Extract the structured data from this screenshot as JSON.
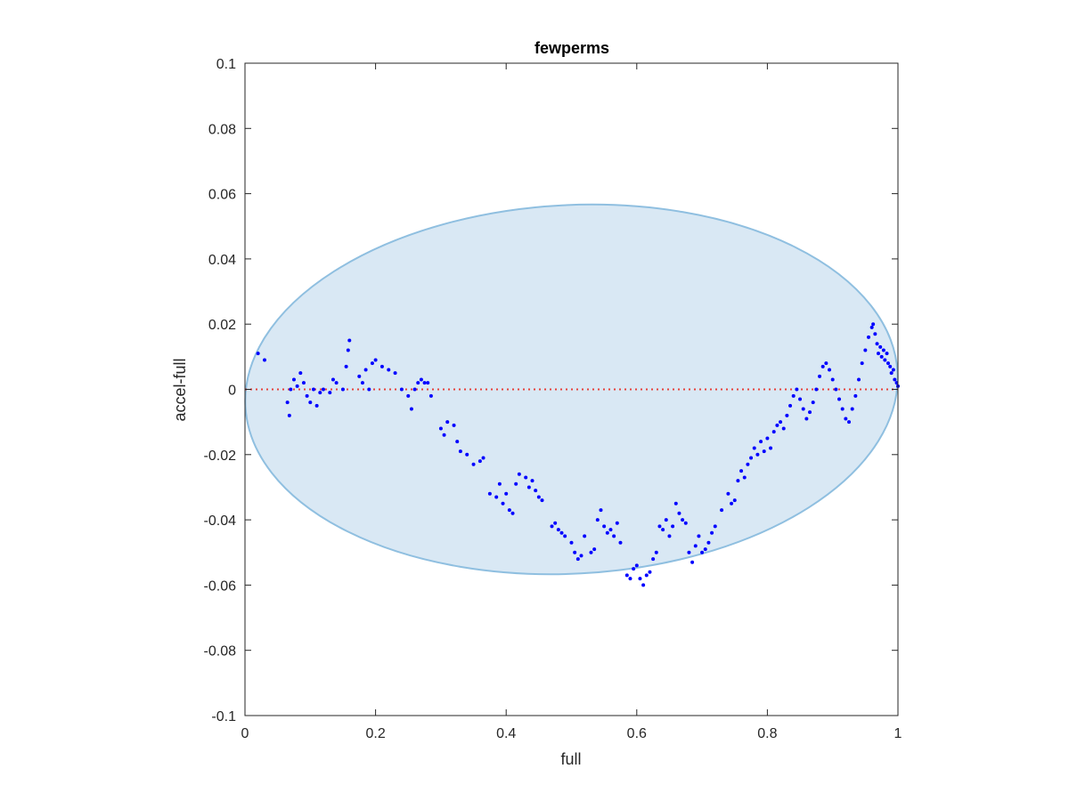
{
  "chart_data": {
    "type": "scatter",
    "title": "fewperms",
    "xlabel": "full",
    "ylabel": "accel-full",
    "xlim": [
      0,
      1
    ],
    "ylim": [
      -0.1,
      0.1
    ],
    "x_ticks": [
      "0",
      "0.2",
      "0.4",
      "0.6",
      "0.8",
      "1"
    ],
    "y_ticks": [
      "0.1",
      "0.08",
      "0.06",
      "0.04",
      "0.02",
      "0",
      "-0.02",
      "-0.04",
      "-0.06",
      "-0.08",
      "-0.1"
    ],
    "x_tick_values": [
      0,
      0.2,
      0.4,
      0.6,
      0.8,
      1
    ],
    "y_tick_values": [
      0.1,
      0.08,
      0.06,
      0.04,
      0.02,
      0,
      -0.02,
      -0.04,
      -0.06,
      -0.08,
      -0.1
    ],
    "grid": false,
    "reference_line": {
      "y": 0,
      "color": "#e8403a",
      "style": "dotted"
    },
    "ellipse": {
      "cx": 0.5,
      "cy": 0,
      "rx": 0.5,
      "ry": 0.0565,
      "angle_deg": -3,
      "fill": "#d9e8f4",
      "stroke": "#8fbfe0"
    },
    "marker_color": "#0000ff",
    "points": [
      [
        0.02,
        0.011
      ],
      [
        0.03,
        0.009
      ],
      [
        0.065,
        -0.004
      ],
      [
        0.068,
        -0.008
      ],
      [
        0.07,
        0.0
      ],
      [
        0.075,
        0.003
      ],
      [
        0.08,
        0.001
      ],
      [
        0.085,
        0.005
      ],
      [
        0.09,
        0.002
      ],
      [
        0.095,
        -0.002
      ],
      [
        0.1,
        -0.004
      ],
      [
        0.105,
        0.0
      ],
      [
        0.11,
        -0.005
      ],
      [
        0.115,
        -0.001
      ],
      [
        0.12,
        0.0
      ],
      [
        0.13,
        -0.001
      ],
      [
        0.135,
        0.003
      ],
      [
        0.14,
        0.002
      ],
      [
        0.15,
        0.0
      ],
      [
        0.155,
        0.007
      ],
      [
        0.158,
        0.012
      ],
      [
        0.16,
        0.015
      ],
      [
        0.175,
        0.004
      ],
      [
        0.18,
        0.002
      ],
      [
        0.185,
        0.006
      ],
      [
        0.19,
        0.0
      ],
      [
        0.195,
        0.008
      ],
      [
        0.2,
        0.009
      ],
      [
        0.21,
        0.007
      ],
      [
        0.22,
        0.006
      ],
      [
        0.23,
        0.005
      ],
      [
        0.24,
        0.0
      ],
      [
        0.25,
        -0.002
      ],
      [
        0.255,
        -0.006
      ],
      [
        0.26,
        0.0
      ],
      [
        0.265,
        0.002
      ],
      [
        0.27,
        0.003
      ],
      [
        0.275,
        0.002
      ],
      [
        0.28,
        0.002
      ],
      [
        0.285,
        -0.002
      ],
      [
        0.3,
        -0.012
      ],
      [
        0.305,
        -0.014
      ],
      [
        0.31,
        -0.01
      ],
      [
        0.32,
        -0.011
      ],
      [
        0.325,
        -0.016
      ],
      [
        0.33,
        -0.019
      ],
      [
        0.34,
        -0.02
      ],
      [
        0.35,
        -0.023
      ],
      [
        0.36,
        -0.022
      ],
      [
        0.365,
        -0.021
      ],
      [
        0.375,
        -0.032
      ],
      [
        0.385,
        -0.033
      ],
      [
        0.39,
        -0.029
      ],
      [
        0.395,
        -0.035
      ],
      [
        0.4,
        -0.032
      ],
      [
        0.405,
        -0.037
      ],
      [
        0.41,
        -0.038
      ],
      [
        0.415,
        -0.029
      ],
      [
        0.42,
        -0.026
      ],
      [
        0.43,
        -0.027
      ],
      [
        0.435,
        -0.03
      ],
      [
        0.44,
        -0.028
      ],
      [
        0.445,
        -0.031
      ],
      [
        0.45,
        -0.033
      ],
      [
        0.455,
        -0.034
      ],
      [
        0.47,
        -0.042
      ],
      [
        0.475,
        -0.041
      ],
      [
        0.48,
        -0.043
      ],
      [
        0.485,
        -0.044
      ],
      [
        0.49,
        -0.045
      ],
      [
        0.5,
        -0.047
      ],
      [
        0.505,
        -0.05
      ],
      [
        0.51,
        -0.052
      ],
      [
        0.515,
        -0.051
      ],
      [
        0.52,
        -0.045
      ],
      [
        0.53,
        -0.05
      ],
      [
        0.535,
        -0.049
      ],
      [
        0.54,
        -0.04
      ],
      [
        0.545,
        -0.037
      ],
      [
        0.55,
        -0.042
      ],
      [
        0.555,
        -0.044
      ],
      [
        0.56,
        -0.043
      ],
      [
        0.565,
        -0.045
      ],
      [
        0.57,
        -0.041
      ],
      [
        0.575,
        -0.047
      ],
      [
        0.585,
        -0.057
      ],
      [
        0.59,
        -0.058
      ],
      [
        0.595,
        -0.055
      ],
      [
        0.6,
        -0.054
      ],
      [
        0.605,
        -0.058
      ],
      [
        0.61,
        -0.06
      ],
      [
        0.615,
        -0.057
      ],
      [
        0.62,
        -0.056
      ],
      [
        0.625,
        -0.052
      ],
      [
        0.63,
        -0.05
      ],
      [
        0.635,
        -0.042
      ],
      [
        0.64,
        -0.043
      ],
      [
        0.645,
        -0.04
      ],
      [
        0.65,
        -0.045
      ],
      [
        0.655,
        -0.042
      ],
      [
        0.66,
        -0.035
      ],
      [
        0.665,
        -0.038
      ],
      [
        0.67,
        -0.04
      ],
      [
        0.675,
        -0.041
      ],
      [
        0.68,
        -0.05
      ],
      [
        0.685,
        -0.053
      ],
      [
        0.69,
        -0.048
      ],
      [
        0.695,
        -0.045
      ],
      [
        0.7,
        -0.05
      ],
      [
        0.705,
        -0.049
      ],
      [
        0.71,
        -0.047
      ],
      [
        0.715,
        -0.044
      ],
      [
        0.72,
        -0.042
      ],
      [
        0.73,
        -0.037
      ],
      [
        0.74,
        -0.032
      ],
      [
        0.745,
        -0.035
      ],
      [
        0.75,
        -0.034
      ],
      [
        0.755,
        -0.028
      ],
      [
        0.76,
        -0.025
      ],
      [
        0.765,
        -0.027
      ],
      [
        0.77,
        -0.023
      ],
      [
        0.775,
        -0.021
      ],
      [
        0.78,
        -0.018
      ],
      [
        0.785,
        -0.02
      ],
      [
        0.79,
        -0.016
      ],
      [
        0.795,
        -0.019
      ],
      [
        0.8,
        -0.015
      ],
      [
        0.805,
        -0.018
      ],
      [
        0.81,
        -0.013
      ],
      [
        0.815,
        -0.011
      ],
      [
        0.82,
        -0.01
      ],
      [
        0.825,
        -0.012
      ],
      [
        0.83,
        -0.008
      ],
      [
        0.835,
        -0.005
      ],
      [
        0.84,
        -0.002
      ],
      [
        0.845,
        0.0
      ],
      [
        0.85,
        -0.003
      ],
      [
        0.855,
        -0.006
      ],
      [
        0.86,
        -0.009
      ],
      [
        0.865,
        -0.007
      ],
      [
        0.87,
        -0.004
      ],
      [
        0.875,
        0.0
      ],
      [
        0.88,
        0.004
      ],
      [
        0.885,
        0.007
      ],
      [
        0.89,
        0.008
      ],
      [
        0.895,
        0.006
      ],
      [
        0.9,
        0.003
      ],
      [
        0.905,
        0.0
      ],
      [
        0.91,
        -0.003
      ],
      [
        0.915,
        -0.006
      ],
      [
        0.92,
        -0.009
      ],
      [
        0.925,
        -0.01
      ],
      [
        0.93,
        -0.006
      ],
      [
        0.935,
        -0.002
      ],
      [
        0.94,
        0.003
      ],
      [
        0.945,
        0.008
      ],
      [
        0.95,
        0.012
      ],
      [
        0.955,
        0.016
      ],
      [
        0.96,
        0.019
      ],
      [
        0.962,
        0.02
      ],
      [
        0.965,
        0.017
      ],
      [
        0.968,
        0.014
      ],
      [
        0.97,
        0.011
      ],
      [
        0.973,
        0.013
      ],
      [
        0.975,
        0.01
      ],
      [
        0.978,
        0.012
      ],
      [
        0.98,
        0.009
      ],
      [
        0.983,
        0.011
      ],
      [
        0.985,
        0.008
      ],
      [
        0.988,
        0.007
      ],
      [
        0.99,
        0.005
      ],
      [
        0.993,
        0.006
      ],
      [
        0.995,
        0.003
      ],
      [
        0.998,
        0.002
      ],
      [
        1.0,
        0.001
      ]
    ]
  }
}
